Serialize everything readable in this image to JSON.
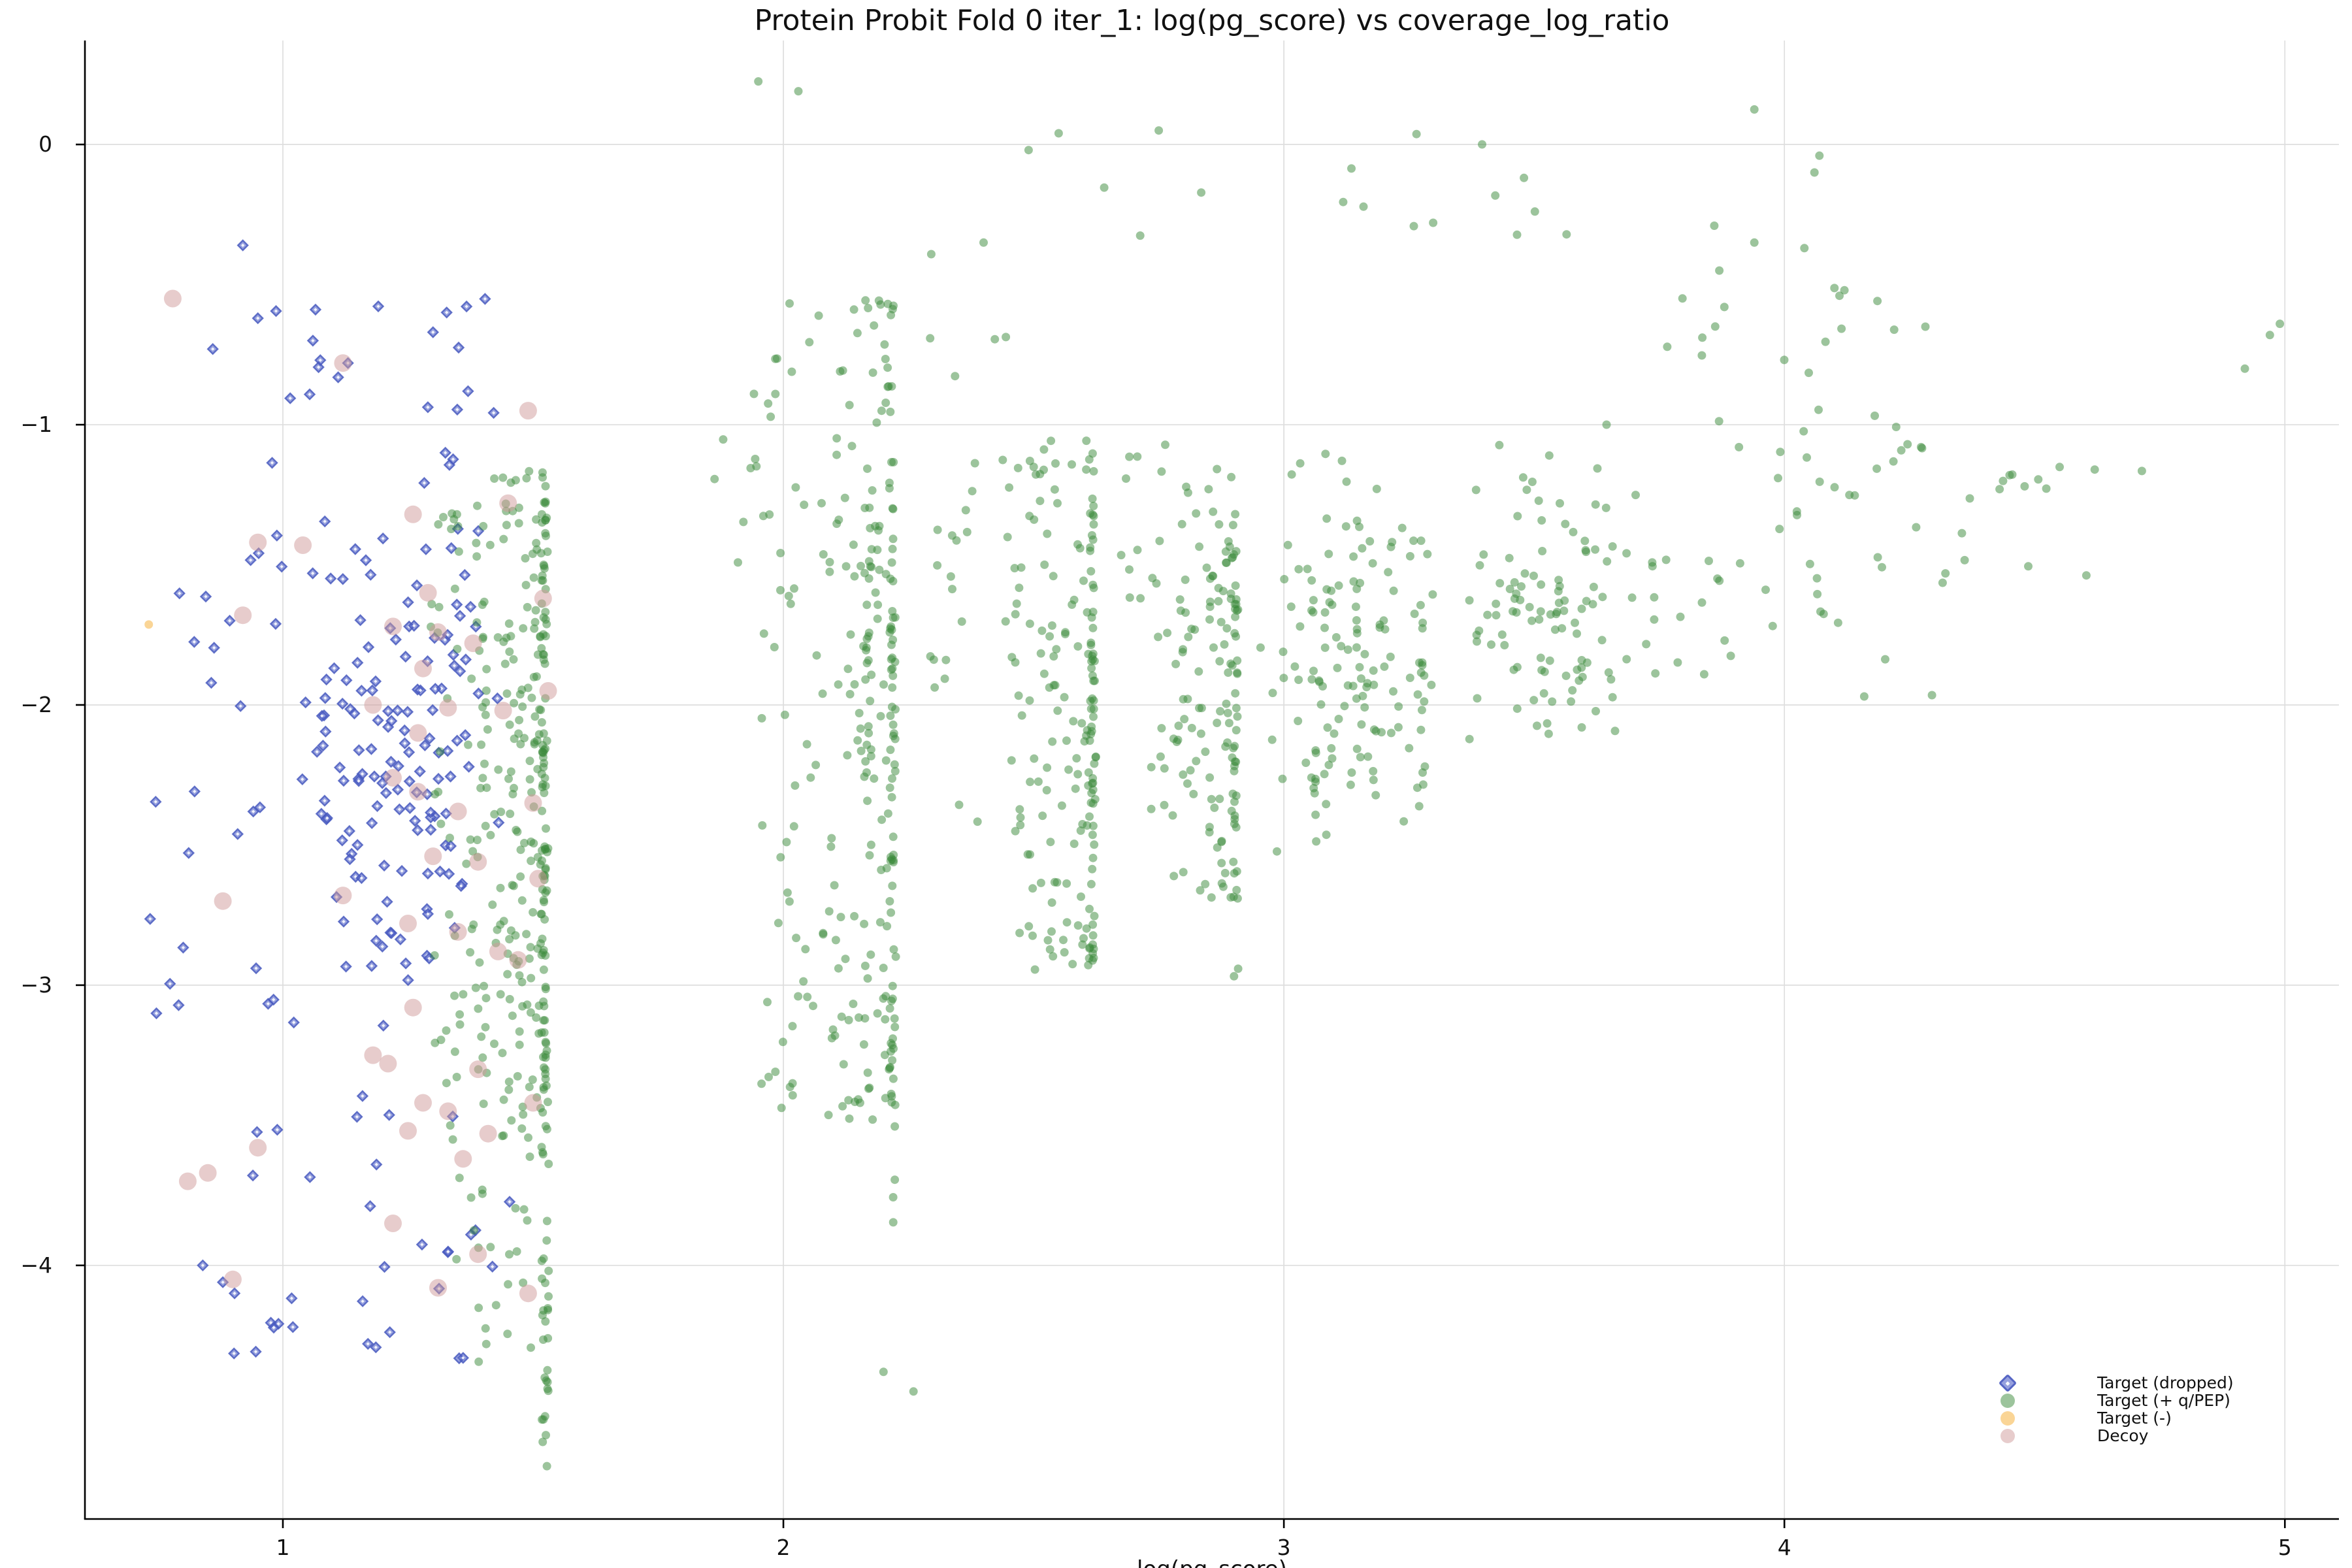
{
  "title": "Protein Probit Fold 0 iter_1: log(pg_score) vs coverage_log_ratio",
  "axes": {
    "xlabel": "log(pg_score)",
    "x_ticks": [
      "1",
      "2",
      "3",
      "4",
      "5"
    ],
    "x_vals": [
      1,
      2,
      3,
      4,
      5
    ],
    "y_ticks": [
      "0",
      "−1",
      "−2",
      "−3",
      "−4"
    ],
    "y_vals": [
      0,
      -1,
      -2,
      -3,
      -4
    ],
    "grid_color": "#dedede",
    "spine_color": "#000000",
    "tick_label_color": "#111111"
  },
  "legend": {
    "items": [
      {
        "label": "Target (dropped)",
        "marker": "diamond",
        "fill": "#5061c8",
        "alpha": 0.6,
        "edge": "#4a5cc0",
        "edge_alpha": 0.85
      },
      {
        "label": "Target (+ q/PEP)",
        "marker": "circle",
        "fill": "#3a8a3a",
        "alpha": 0.5
      },
      {
        "label": "Target (-)",
        "marker": "circle",
        "fill": "#f6b950",
        "alpha": 0.6
      },
      {
        "label": "Decoy",
        "marker": "circle",
        "fill": "#cf9999",
        "alpha": 0.5
      }
    ]
  },
  "chart_data": {
    "type": "scatter",
    "title": "Protein Probit Fold 0 iter_1: log(pg_score) vs coverage_log_ratio",
    "xlabel": "log(pg_score)",
    "xlim": [
      0.6045,
      5.108
    ],
    "ylim": [
      -4.905,
      0.371
    ],
    "grid": true,
    "legend_position": "lower right",
    "seed": 7,
    "series": [
      {
        "name": "Target (dropped)",
        "marker": "diamond",
        "size": 15,
        "color": "#5061c8",
        "alpha": 0.6,
        "edge": "#4a5cc0",
        "edge_alpha": 0.85,
        "gen": [
          {
            "kind": "cloud",
            "x": [
              0.98,
              1.46
            ],
            "y": [
              -3.35,
              -1.15
            ],
            "n": 150,
            "bias": true
          },
          {
            "kind": "cloud",
            "x": [
              0.72,
              1.0
            ],
            "y": [
              -3.2,
              -1.4
            ],
            "n": 24
          },
          {
            "kind": "cloud",
            "x": [
              0.95,
              1.43
            ],
            "y": [
              -1.15,
              -0.55
            ],
            "n": 20
          },
          {
            "kind": "cloud",
            "x": [
              0.9,
              1.46
            ],
            "y": [
              -4.35,
              -3.35
            ],
            "n": 30
          }
        ],
        "points": [
          [
            0.92,
            -0.36
          ],
          [
            1.13,
            -0.78
          ],
          [
            0.86,
            -0.73
          ],
          [
            1.3,
            -0.67
          ],
          [
            1.06,
            -0.7
          ],
          [
            0.95,
            -0.62
          ],
          [
            1.17,
            -4.28
          ],
          [
            1.02,
            -4.22
          ],
          [
            1.36,
            -4.33
          ],
          [
            0.84,
            -4.0
          ],
          [
            0.88,
            -4.06
          ]
        ]
      },
      {
        "name": "Target (+ q/PEP)",
        "marker": "circle",
        "size": 13,
        "color": "#3a8a3a",
        "alpha": 0.5,
        "gen": [
          {
            "kind": "edge",
            "xEdge": 1.525,
            "spread": 0.23,
            "y": [
              -3.55,
              -1.15
            ],
            "n": 265,
            "pow": 2.0
          },
          {
            "kind": "column",
            "x": 1.524,
            "jx": 0.007,
            "y": [
              -4.72,
              -1.3
            ],
            "n": 85
          },
          {
            "kind": "cloud",
            "x": [
              1.32,
              1.52
            ],
            "y": [
              -4.45,
              -3.5
            ],
            "n": 26
          },
          {
            "kind": "cloud",
            "x": [
              1.85,
              2.02
            ],
            "y": [
              -1.65,
              -0.4
            ],
            "n": 13
          },
          {
            "kind": "edge",
            "xEdge": 2.22,
            "spread": 0.27,
            "y": [
              -3.5,
              -0.55
            ],
            "n": 200,
            "pow": 1.8
          },
          {
            "kind": "column",
            "x": 2.218,
            "jx": 0.007,
            "y": [
              -3.88,
              -1.4
            ],
            "n": 45
          },
          {
            "kind": "column",
            "x": 2.17,
            "jx": 0.006,
            "y": [
              -2.6,
              -1.3
            ],
            "n": 22
          },
          {
            "kind": "cloud",
            "x": [
              2.28,
              2.48
            ],
            "y": [
              -2.5,
              -0.6
            ],
            "n": 28
          },
          {
            "kind": "edge",
            "xEdge": 2.62,
            "spread": 0.17,
            "y": [
              -2.95,
              -1.05
            ],
            "n": 145,
            "pow": 1.8
          },
          {
            "kind": "column",
            "x": 2.618,
            "jx": 0.007,
            "y": [
              -2.95,
              -1.3
            ],
            "n": 32
          },
          {
            "kind": "cloud",
            "x": [
              2.66,
              2.82
            ],
            "y": [
              -2.4,
              -0.9
            ],
            "n": 24
          },
          {
            "kind": "edge",
            "xEdge": 2.905,
            "spread": 0.13,
            "y": [
              -2.7,
              -1.15
            ],
            "n": 105,
            "pow": 1.7
          },
          {
            "kind": "column",
            "x": 2.903,
            "jx": 0.007,
            "y": [
              -3.0,
              -1.4
            ],
            "n": 28
          },
          {
            "kind": "cloud",
            "x": [
              2.95,
              3.33
            ],
            "y": [
              -2.55,
              -1.05
            ],
            "n": 125,
            "bias": true
          },
          {
            "kind": "column",
            "x": 3.28,
            "jx": 0.007,
            "y": [
              -2.35,
              -1.3
            ],
            "n": 12
          },
          {
            "kind": "column",
            "x": 3.06,
            "jx": 0.006,
            "y": [
              -2.5,
              -1.55
            ],
            "n": 10
          },
          {
            "kind": "cloud",
            "x": [
              3.33,
              3.72
            ],
            "y": [
              -2.3,
              -0.95
            ],
            "n": 105,
            "bias": true
          },
          {
            "kind": "cloud",
            "x": [
              3.72,
              4.3
            ],
            "y": [
              -2.0,
              -0.5
            ],
            "n": 66
          },
          {
            "kind": "cloud",
            "x": [
              1.9,
              3.6
            ],
            "y": [
              -0.45,
              0.08
            ],
            "n": 16
          },
          {
            "kind": "cloud",
            "x": [
              4.3,
              4.75
            ],
            "y": [
              -1.6,
              -1.0
            ],
            "n": 13
          }
        ],
        "points": [
          [
            1.95,
            0.225
          ],
          [
            2.03,
            0.19
          ],
          [
            2.55,
            0.04
          ],
          [
            2.75,
            0.05
          ],
          [
            3.94,
            0.125
          ],
          [
            4.07,
            -0.04
          ],
          [
            4.06,
            -0.1
          ],
          [
            3.86,
            -0.29
          ],
          [
            3.94,
            -0.35
          ],
          [
            4.04,
            -0.37
          ],
          [
            3.87,
            -0.45
          ],
          [
            4.12,
            -0.52
          ],
          [
            4.11,
            -0.54
          ],
          [
            3.88,
            -0.58
          ],
          [
            4.99,
            -0.64
          ],
          [
            4.97,
            -0.68
          ],
          [
            4.92,
            -0.8
          ],
          [
            4.45,
            -1.18
          ],
          [
            4.43,
            -1.23
          ],
          [
            4.48,
            -1.22
          ],
          [
            4.62,
            -1.16
          ],
          [
            2.4,
            -0.35
          ],
          [
            2.49,
            -0.02
          ],
          [
            2.2,
            -4.38
          ],
          [
            2.26,
            -4.45
          ]
        ]
      },
      {
        "name": "Target (-)",
        "marker": "circle",
        "size": 13,
        "color": "#f6b950",
        "alpha": 0.6,
        "points": [
          [
            0.732,
            -1.713
          ]
        ]
      },
      {
        "name": "Decoy",
        "marker": "circle",
        "size": 27,
        "color": "#cf9999",
        "alpha": 0.5,
        "points": [
          [
            0.78,
            -0.55
          ],
          [
            1.12,
            -0.78
          ],
          [
            1.49,
            -0.95
          ],
          [
            0.95,
            -1.42
          ],
          [
            1.04,
            -1.43
          ],
          [
            1.26,
            -1.32
          ],
          [
            1.45,
            -1.28
          ],
          [
            1.29,
            -1.6
          ],
          [
            0.92,
            -1.68
          ],
          [
            1.52,
            -1.62
          ],
          [
            1.22,
            -1.72
          ],
          [
            1.31,
            -1.74
          ],
          [
            1.38,
            -1.78
          ],
          [
            1.28,
            -1.87
          ],
          [
            1.53,
            -1.95
          ],
          [
            1.18,
            -2.0
          ],
          [
            1.33,
            -2.01
          ],
          [
            1.44,
            -2.02
          ],
          [
            1.27,
            -2.1
          ],
          [
            1.22,
            -2.26
          ],
          [
            1.27,
            -2.31
          ],
          [
            1.35,
            -2.38
          ],
          [
            1.5,
            -2.35
          ],
          [
            1.3,
            -2.54
          ],
          [
            1.39,
            -2.56
          ],
          [
            1.51,
            -2.62
          ],
          [
            1.12,
            -2.68
          ],
          [
            0.88,
            -2.7
          ],
          [
            1.25,
            -2.78
          ],
          [
            1.35,
            -2.81
          ],
          [
            1.43,
            -2.88
          ],
          [
            1.47,
            -2.91
          ],
          [
            1.26,
            -3.08
          ],
          [
            1.18,
            -3.25
          ],
          [
            1.21,
            -3.28
          ],
          [
            1.39,
            -3.3
          ],
          [
            1.28,
            -3.42
          ],
          [
            1.33,
            -3.45
          ],
          [
            1.5,
            -3.42
          ],
          [
            1.25,
            -3.52
          ],
          [
            1.41,
            -3.53
          ],
          [
            1.36,
            -3.62
          ],
          [
            0.95,
            -3.58
          ],
          [
            0.85,
            -3.67
          ],
          [
            0.81,
            -3.7
          ],
          [
            1.22,
            -3.85
          ],
          [
            1.39,
            -3.96
          ],
          [
            0.9,
            -4.05
          ],
          [
            1.31,
            -4.08
          ],
          [
            1.49,
            -4.1
          ]
        ]
      }
    ]
  }
}
